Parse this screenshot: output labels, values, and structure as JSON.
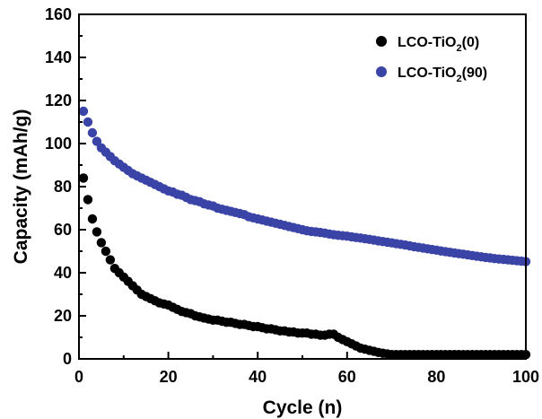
{
  "chart_data": {
    "type": "scatter",
    "title": "",
    "xlabel": "Cycle (n)",
    "ylabel": "Capacity (mAh/g)",
    "xlim": [
      0,
      100
    ],
    "ylim": [
      0,
      160
    ],
    "xticks": [
      0,
      20,
      40,
      60,
      80,
      100
    ],
    "yticks": [
      0,
      20,
      40,
      60,
      80,
      100,
      120,
      140,
      160
    ],
    "grid": false,
    "legend_position": "top-right",
    "series": [
      {
        "name_prefix": "LCO-TiO",
        "name_sub": "2",
        "name_suffix": "(0)",
        "color": "#000000",
        "x": [
          1,
          2,
          3,
          4,
          5,
          6,
          7,
          8,
          9,
          10,
          11,
          12,
          13,
          14,
          15,
          16,
          17,
          18,
          19,
          20,
          21,
          22,
          23,
          24,
          25,
          26,
          27,
          28,
          29,
          30,
          31,
          32,
          33,
          34,
          35,
          36,
          37,
          38,
          39,
          40,
          41,
          42,
          43,
          44,
          45,
          46,
          47,
          48,
          49,
          50,
          51,
          52,
          53,
          54,
          55,
          56,
          57,
          58,
          59,
          60,
          61,
          62,
          63,
          64,
          65,
          66,
          67,
          68,
          69,
          70,
          71,
          72,
          73,
          74,
          75,
          76,
          77,
          78,
          79,
          80,
          81,
          82,
          83,
          84,
          85,
          86,
          87,
          88,
          89,
          90,
          91,
          92,
          93,
          94,
          95,
          96,
          97,
          98,
          99,
          100
        ],
        "y": [
          84,
          74,
          65,
          59,
          54,
          50,
          46,
          42,
          40,
          38,
          36,
          34,
          32,
          30,
          29,
          28,
          27,
          26,
          25.5,
          25,
          24,
          23,
          22,
          21.5,
          21,
          20,
          19.5,
          19,
          18.5,
          18,
          18,
          17.5,
          17,
          17,
          16.5,
          16,
          16,
          15.5,
          15,
          15,
          14.5,
          14,
          14,
          13.5,
          13,
          13,
          12.5,
          12.5,
          12,
          12,
          12,
          11.5,
          11.5,
          11,
          11,
          11.5,
          11.5,
          10,
          9,
          8,
          7,
          6,
          5,
          4.5,
          4,
          3.5,
          3,
          2.6,
          2.3,
          2,
          2,
          2,
          2,
          2,
          2,
          2,
          2,
          2,
          2,
          2,
          2,
          2,
          2,
          2,
          2,
          2,
          2,
          2,
          2,
          2,
          2,
          2,
          2,
          2,
          2,
          2,
          2,
          2,
          2,
          2
        ]
      },
      {
        "name_prefix": "LCO-TiO",
        "name_sub": "2",
        "name_suffix": "(90)",
        "color": "#3a43a6",
        "x": [
          1,
          2,
          3,
          4,
          5,
          6,
          7,
          8,
          9,
          10,
          11,
          12,
          13,
          14,
          15,
          16,
          17,
          18,
          19,
          20,
          21,
          22,
          23,
          24,
          25,
          26,
          27,
          28,
          29,
          30,
          31,
          32,
          33,
          34,
          35,
          36,
          37,
          38,
          39,
          40,
          41,
          42,
          43,
          44,
          45,
          46,
          47,
          48,
          49,
          50,
          51,
          52,
          53,
          54,
          55,
          56,
          57,
          58,
          59,
          60,
          61,
          62,
          63,
          64,
          65,
          66,
          67,
          68,
          69,
          70,
          71,
          72,
          73,
          74,
          75,
          76,
          77,
          78,
          79,
          80,
          81,
          82,
          83,
          84,
          85,
          86,
          87,
          88,
          89,
          90,
          91,
          92,
          93,
          94,
          95,
          96,
          97,
          98,
          99,
          100
        ],
        "y": [
          115,
          110,
          105,
          101,
          98,
          96,
          94,
          92,
          90.5,
          89,
          87.5,
          86,
          85,
          84,
          83,
          82,
          81,
          80,
          79,
          78,
          77.5,
          76.5,
          76,
          75,
          74,
          73.5,
          73,
          72,
          71.5,
          71,
          70,
          69.5,
          69,
          68.5,
          68,
          67.5,
          67,
          66,
          65.5,
          65,
          64.5,
          64,
          63.5,
          63,
          62.5,
          62,
          61.5,
          61,
          60.5,
          60,
          59.5,
          59.2,
          59,
          58.7,
          58.4,
          58,
          57.7,
          57.4,
          57.2,
          57,
          56.7,
          56.4,
          56.1,
          55.8,
          55.5,
          55.2,
          54.8,
          54.5,
          54.2,
          53.9,
          53.5,
          53.2,
          52.9,
          52.5,
          52.1,
          51.8,
          51.5,
          51.1,
          50.8,
          50.5,
          50.1,
          49.8,
          49.5,
          49.2,
          48.9,
          48.6,
          48.3,
          48,
          47.7,
          47.4,
          47.1,
          46.9,
          46.6,
          46.4,
          46.2,
          46,
          45.8,
          45.6,
          45.4,
          45.2
        ]
      }
    ]
  }
}
